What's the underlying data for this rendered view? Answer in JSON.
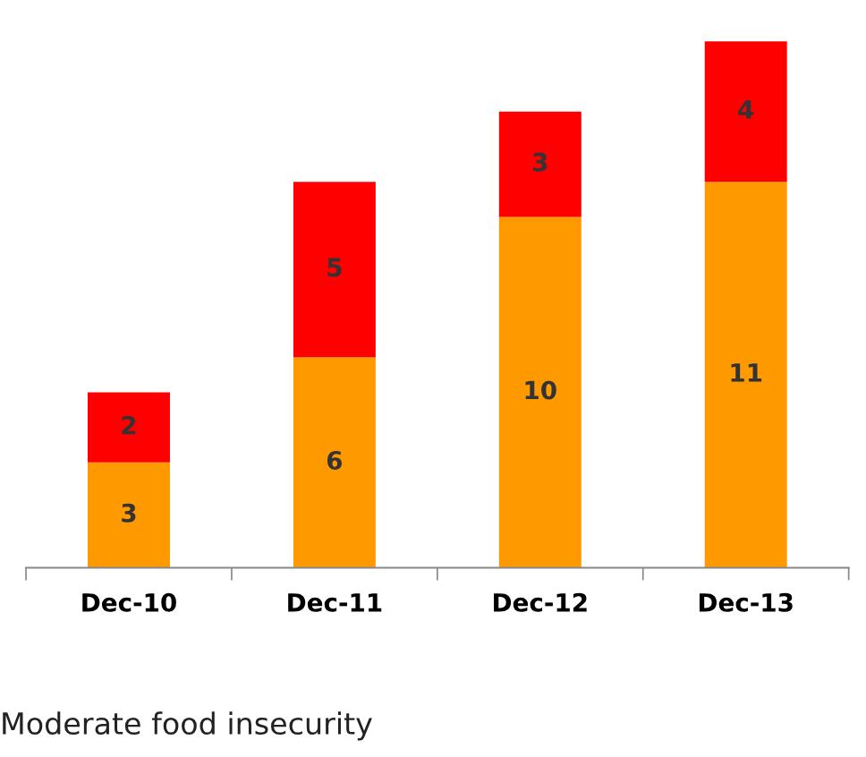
{
  "chart_data": {
    "type": "bar",
    "stacked": true,
    "categories": [
      "Dec-10",
      "Dec-11",
      "Dec-12",
      "Dec-13"
    ],
    "series": [
      {
        "color": "#ff9900",
        "values": [
          3,
          6,
          10,
          11
        ]
      },
      {
        "color": "#ff0000",
        "values": [
          2,
          5,
          3,
          4
        ]
      }
    ],
    "data_labels": true,
    "grid": false,
    "tick_labels": "x",
    "annotations": [
      "Moderate food insecurity"
    ]
  }
}
